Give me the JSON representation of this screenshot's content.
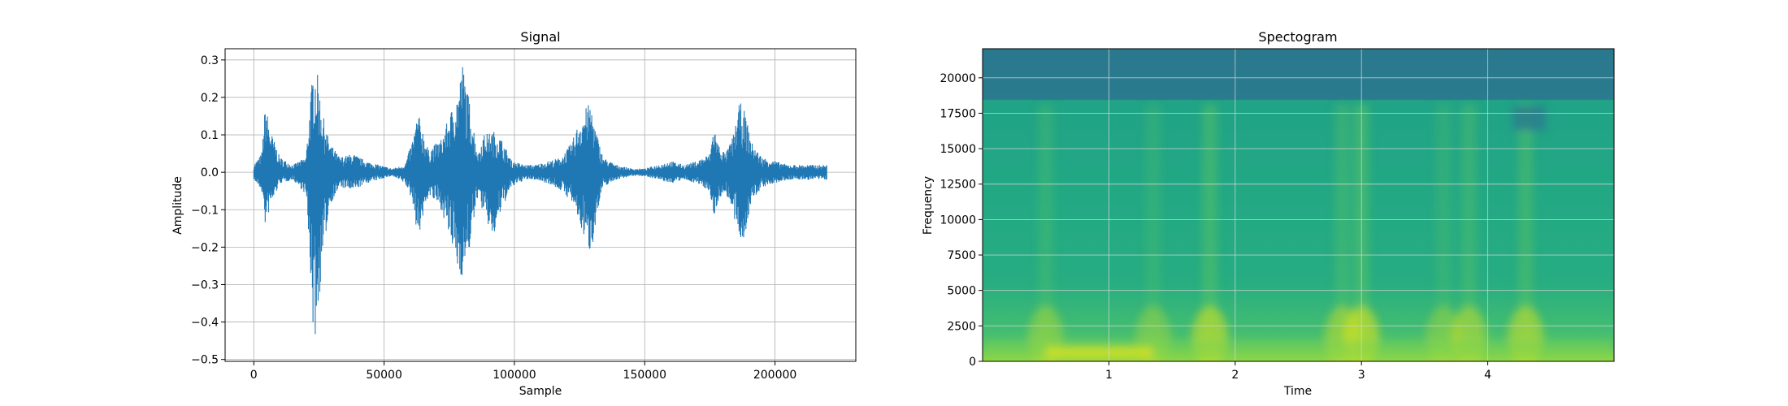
{
  "chart_data": [
    {
      "type": "line",
      "title": "Signal",
      "xlabel": "Sample",
      "ylabel": "Amplitude",
      "xlim": [
        -11000,
        231000
      ],
      "ylim": [
        -0.505,
        0.33
      ],
      "xticks": [
        0,
        50000,
        100000,
        150000,
        200000
      ],
      "xtick_labels": [
        "0",
        "50000",
        "100000",
        "150000",
        "200000"
      ],
      "yticks": [
        -0.5,
        -0.4,
        -0.3,
        -0.2,
        -0.1,
        0.0,
        0.1,
        0.2,
        0.3
      ],
      "ytick_labels": [
        "−0.5",
        "−0.4",
        "−0.3",
        "−0.2",
        "−0.1",
        "0.0",
        "0.1",
        "0.2",
        "0.3"
      ],
      "grid": true,
      "color": "#1f77b4",
      "series": [
        {
          "x": [
            0,
            3000,
            4500,
            6000,
            10000,
            15000,
            20000,
            22000,
            23000,
            24500,
            26000,
            29000,
            33000,
            38000,
            43000,
            48000,
            53000,
            58000,
            61000,
            63000,
            67000,
            72000,
            76000,
            78500,
            80000,
            83000,
            86000,
            88000,
            92000,
            95000,
            99000,
            104000,
            108000,
            113000,
            118000,
            122000,
            125000,
            128000,
            129500,
            131000,
            134000,
            139000,
            145000,
            150000,
            155000,
            160000,
            165000,
            170000,
            175000,
            176500,
            178000,
            181000,
            184000,
            186500,
            188500,
            191000,
            195000,
            200000,
            205000,
            210000,
            215000,
            220000
          ],
          "upper": [
            0.02,
            0.05,
            0.19,
            0.12,
            0.04,
            0.02,
            0.04,
            0.22,
            0.285,
            0.26,
            0.17,
            0.08,
            0.04,
            0.05,
            0.03,
            0.02,
            0.01,
            0.02,
            0.09,
            0.16,
            0.06,
            0.09,
            0.17,
            0.22,
            0.295,
            0.18,
            0.05,
            0.1,
            0.11,
            0.09,
            0.03,
            0.02,
            0.02,
            0.03,
            0.04,
            0.08,
            0.14,
            0.18,
            0.18,
            0.12,
            0.04,
            0.02,
            0.01,
            0.01,
            0.02,
            0.03,
            0.02,
            0.03,
            0.05,
            0.13,
            0.08,
            0.05,
            0.1,
            0.19,
            0.16,
            0.08,
            0.04,
            0.03,
            0.02,
            0.02,
            0.02,
            0.02
          ],
          "lower": [
            -0.02,
            -0.05,
            -0.15,
            -0.1,
            -0.03,
            -0.02,
            -0.06,
            -0.3,
            -0.47,
            -0.4,
            -0.26,
            -0.09,
            -0.04,
            -0.05,
            -0.03,
            -0.02,
            -0.01,
            -0.03,
            -0.08,
            -0.18,
            -0.06,
            -0.1,
            -0.2,
            -0.27,
            -0.28,
            -0.2,
            -0.06,
            -0.11,
            -0.18,
            -0.1,
            -0.04,
            -0.02,
            -0.02,
            -0.03,
            -0.05,
            -0.08,
            -0.14,
            -0.2,
            -0.22,
            -0.14,
            -0.04,
            -0.02,
            -0.01,
            -0.01,
            -0.02,
            -0.03,
            -0.02,
            -0.03,
            -0.05,
            -0.13,
            -0.08,
            -0.05,
            -0.12,
            -0.19,
            -0.17,
            -0.08,
            -0.04,
            -0.03,
            -0.02,
            -0.02,
            -0.02,
            -0.02
          ]
        }
      ]
    },
    {
      "type": "heatmap",
      "title": "Spectogram",
      "xlabel": "Time",
      "ylabel": "Frequency",
      "xlim": [
        0,
        5
      ],
      "ylim": [
        0,
        22050
      ],
      "xticks": [
        1,
        2,
        3,
        4
      ],
      "xtick_labels": [
        "1",
        "2",
        "3",
        "4"
      ],
      "yticks": [
        0,
        2500,
        5000,
        7500,
        10000,
        12500,
        15000,
        17500,
        20000
      ],
      "ytick_labels": [
        "0",
        "2500",
        "5000",
        "7500",
        "10000",
        "12500",
        "15000",
        "17500",
        "20000"
      ],
      "grid": true,
      "colormap": "viridis",
      "colors": {
        "cutoff_band": "#2a7b8e",
        "mid": "#26a784",
        "bright": "#7fd34e",
        "peak": "#e2e418"
      },
      "cutoff_frequency": 18500,
      "bright_time_bands": [
        {
          "t": 0.5,
          "strength": 0.35
        },
        {
          "t": 1.35,
          "strength": 0.3
        },
        {
          "t": 1.8,
          "strength": 0.55
        },
        {
          "t": 2.85,
          "strength": 0.45
        },
        {
          "t": 3.0,
          "strength": 0.6
        },
        {
          "t": 3.65,
          "strength": 0.3
        },
        {
          "t": 3.85,
          "strength": 0.45
        },
        {
          "t": 4.3,
          "strength": 0.5
        }
      ]
    }
  ]
}
